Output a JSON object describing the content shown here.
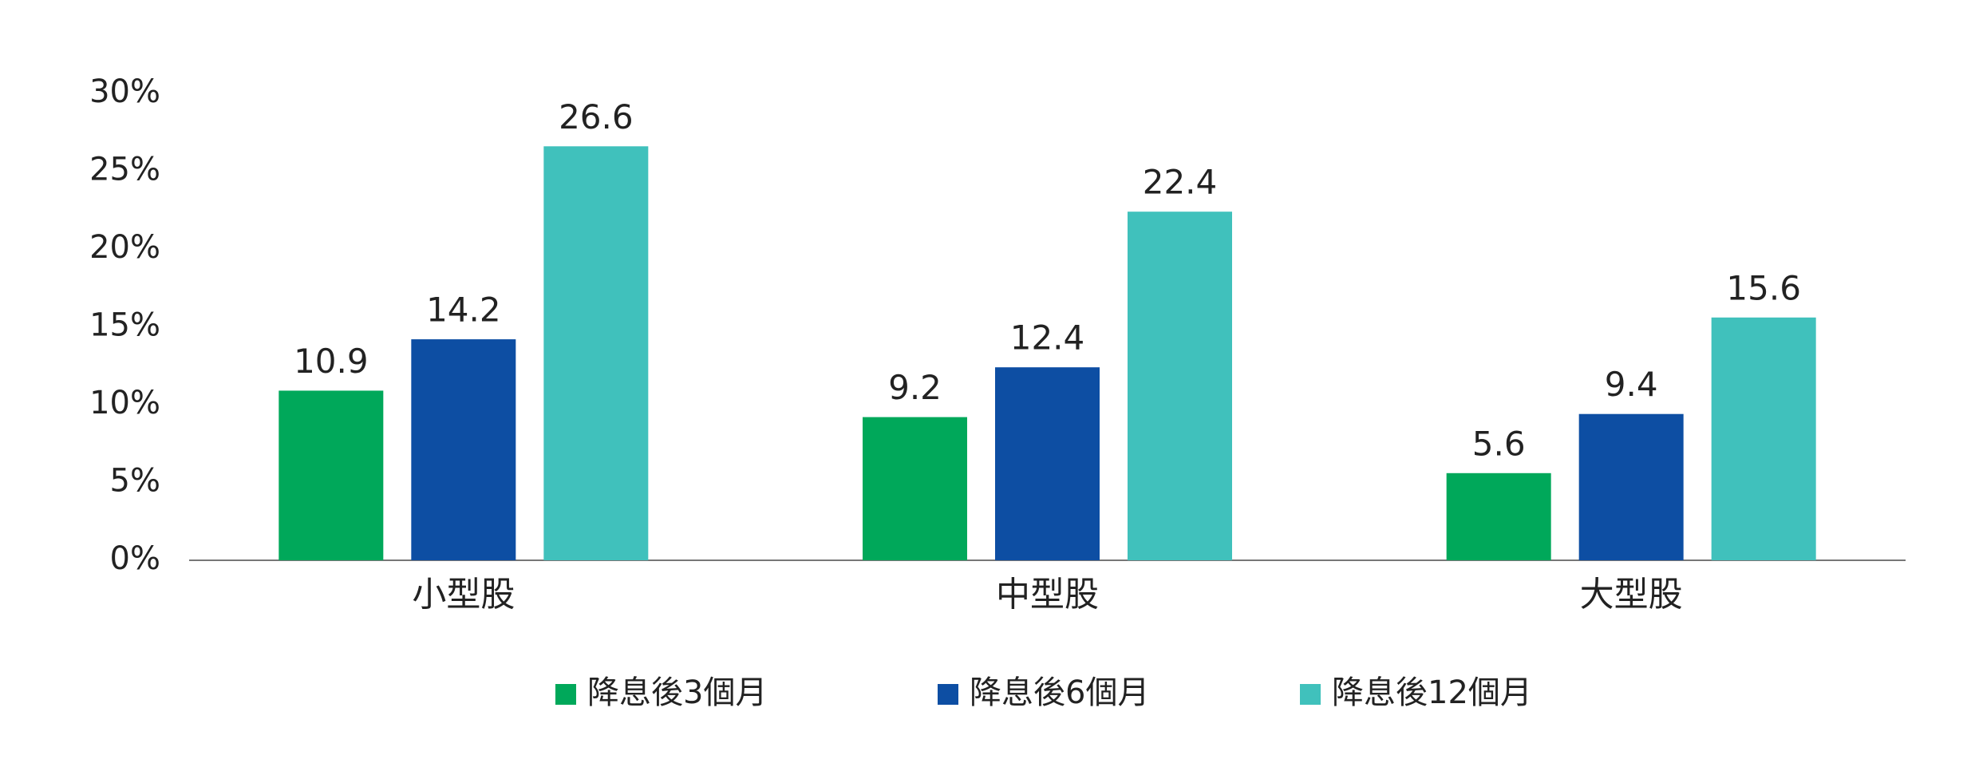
{
  "chart_data": {
    "type": "bar",
    "categories": [
      "小型股",
      "中型股",
      "大型股"
    ],
    "series": [
      {
        "name": "降息後3個月",
        "color": "#00a85a",
        "values": [
          10.9,
          9.2,
          5.6
        ]
      },
      {
        "name": "降息後6個月",
        "color": "#0d4ea3",
        "values": [
          14.2,
          12.4,
          9.4
        ]
      },
      {
        "name": "降息後12個月",
        "color": "#40c1bc",
        "values": [
          26.6,
          22.4,
          15.6
        ]
      }
    ],
    "ylim": [
      0,
      30
    ],
    "yticks": [
      {
        "value": 0,
        "label": "0%"
      },
      {
        "value": 5,
        "label": "5%"
      },
      {
        "value": 10,
        "label": "10%"
      },
      {
        "value": 15,
        "label": "15%"
      },
      {
        "value": 20,
        "label": "20%"
      },
      {
        "value": 25,
        "label": "25%"
      },
      {
        "value": 30,
        "label": "30%"
      }
    ],
    "grid": false,
    "legend": "bottom"
  }
}
